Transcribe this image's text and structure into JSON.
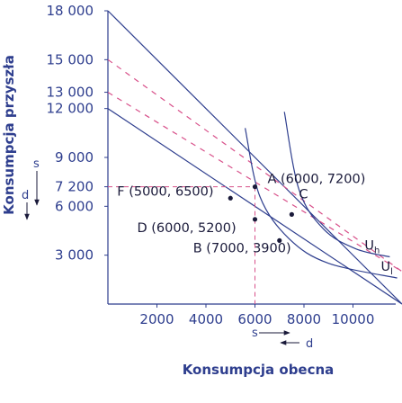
{
  "chart_data": {
    "type": "line",
    "title": "",
    "xlabel": "Konsumpcja obecna",
    "ylabel": "Konsumpcja przyszła",
    "xlim": [
      0,
      12000
    ],
    "ylim": [
      0,
      18000
    ],
    "x_ticks": [
      "2000",
      "4000",
      "6000",
      "8000",
      "10000"
    ],
    "y_ticks": [
      "18 000",
      "15 000",
      "13 000",
      "12 000",
      "9 000",
      "7 200",
      "6 000",
      "3 000"
    ],
    "tick_values_x": [
      2000,
      4000,
      6000,
      8000,
      10000
    ],
    "tick_values_y": [
      18000,
      15000,
      13000,
      12000,
      9000,
      7200,
      6000,
      3000
    ],
    "budget_lines": [
      {
        "style": "solid",
        "points": [
          [
            0,
            18000
          ],
          [
            12000,
            0
          ]
        ]
      },
      {
        "style": "dashed",
        "points": [
          [
            0,
            15000
          ],
          [
            12000,
            2000
          ]
        ]
      },
      {
        "style": "dashed",
        "points": [
          [
            0,
            13000
          ],
          [
            12000,
            2000
          ]
        ]
      },
      {
        "style": "solid",
        "points": [
          [
            0,
            12000
          ],
          [
            12000,
            0
          ]
        ]
      }
    ],
    "indifference_curves": [
      {
        "name": "U",
        "subscript": "h",
        "points": [
          [
            7200,
            11800
          ],
          [
            7800,
            7000
          ],
          [
            8800,
            4600
          ],
          [
            10100,
            3400
          ],
          [
            11500,
            2900
          ]
        ]
      },
      {
        "name": "U",
        "subscript": "l",
        "points": [
          [
            5600,
            10800
          ],
          [
            6200,
            6600
          ],
          [
            7400,
            4000
          ],
          [
            9000,
            2500
          ],
          [
            11800,
            1600
          ]
        ]
      }
    ],
    "points": [
      {
        "label": "A (6000, 7200)",
        "x": 6000,
        "y": 7200
      },
      {
        "label": "C",
        "x": 7500,
        "y": 5500
      },
      {
        "label": "F (5000, 6500)",
        "x": 5000,
        "y": 6500
      },
      {
        "label": "D (6000, 5200)",
        "x": 6000,
        "y": 5200
      },
      {
        "label": "B (7000, 3900)",
        "x": 7000,
        "y": 3900
      }
    ],
    "guides": [
      {
        "from": [
          0,
          7200
        ],
        "to": [
          6000,
          7200
        ]
      },
      {
        "from": [
          6000,
          7200
        ],
        "to": [
          6000,
          0
        ]
      }
    ],
    "annotations": {
      "savings": "s",
      "dissavings": "d"
    }
  }
}
